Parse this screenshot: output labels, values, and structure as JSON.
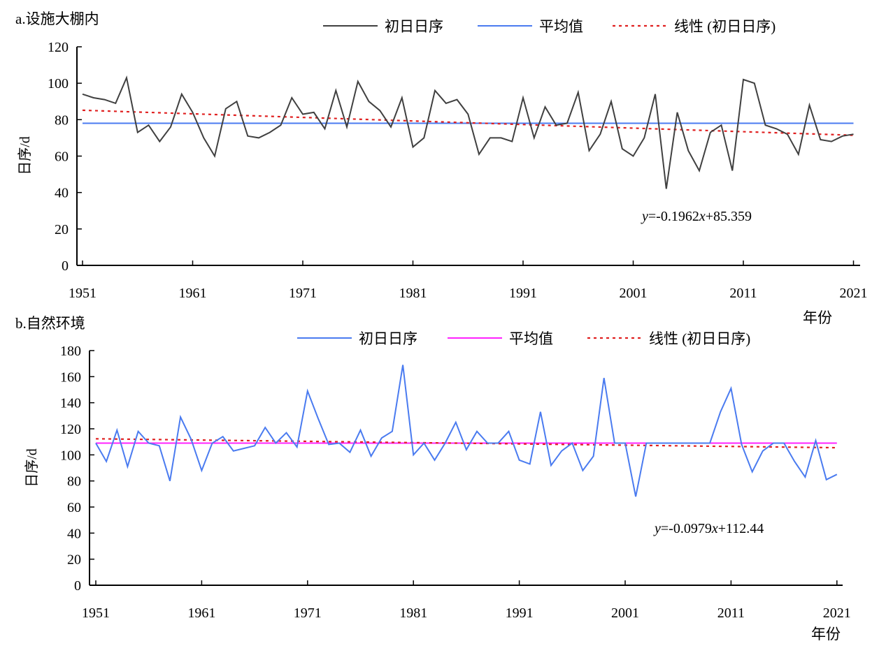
{
  "chart_data": [
    {
      "type": "line",
      "title": "a.设施大棚内",
      "xlabel": "年份",
      "ylabel": "日序/d",
      "ylim": [
        0,
        120
      ],
      "yticks": [
        "0",
        "20",
        "40",
        "60",
        "80",
        "100",
        "120"
      ],
      "xticks": [
        "1951",
        "1961",
        "1971",
        "1981",
        "1991",
        "2001",
        "2011",
        "2021"
      ],
      "x_start": 1951,
      "equation_y": "y",
      "equation_rest": "=-0.1962",
      "equation_x": "x",
      "equation_tail": "+85.359",
      "trend": {
        "slope": -0.1962,
        "intercept": 85.359
      },
      "mean": 78,
      "colors": {
        "series": "#404040",
        "mean": "#4a7bf0",
        "trend": "#e02020"
      },
      "legend": [
        "初日日序",
        "平均值",
        "线性 (初日日序)"
      ],
      "legend_position": "top",
      "values": [
        94,
        92,
        91,
        89,
        103,
        73,
        77,
        68,
        76,
        94,
        84,
        70,
        60,
        86,
        90,
        71,
        70,
        73,
        77,
        92,
        83,
        84,
        75,
        96,
        76,
        101,
        90,
        85,
        76,
        92,
        65,
        70,
        96,
        89,
        91,
        83,
        61,
        70,
        70,
        68,
        92,
        70,
        87,
        77,
        78,
        95,
        63,
        72,
        90,
        64,
        60,
        70,
        94,
        42,
        84,
        63,
        52,
        73,
        77,
        52,
        102,
        100,
        77,
        75,
        72,
        61,
        88,
        69,
        68,
        71,
        72
      ]
    },
    {
      "type": "line",
      "title": "b.自然环境",
      "xlabel": "年份",
      "ylabel": "日序/d",
      "ylim": [
        0,
        180
      ],
      "yticks": [
        "0",
        "20",
        "40",
        "60",
        "80",
        "100",
        "120",
        "140",
        "160",
        "180"
      ],
      "xticks": [
        "1951",
        "1961",
        "1971",
        "1981",
        "1991",
        "2001",
        "2011",
        "2021"
      ],
      "x_start": 1951,
      "equation_y": "y",
      "equation_rest": "=-0.0979",
      "equation_x": "x",
      "equation_tail": "+112.44",
      "trend": {
        "slope": -0.0979,
        "intercept": 112.44
      },
      "mean": 109,
      "colors": {
        "series": "#4a7bf0",
        "mean": "#ff22ff",
        "trend": "#e02020"
      },
      "legend": [
        "初日日序",
        "平均值",
        "线性 (初日日序)"
      ],
      "legend_position": "top",
      "values": [
        109,
        95,
        119,
        91,
        118,
        109,
        107,
        80,
        129,
        112,
        88,
        109,
        114,
        103,
        105,
        107,
        121,
        109,
        117,
        106,
        149,
        128,
        108,
        109,
        102,
        119,
        99,
        113,
        118,
        169,
        100,
        109,
        96,
        109,
        125,
        104,
        118,
        109,
        109,
        118,
        96,
        93,
        133,
        92,
        103,
        109,
        88,
        99,
        159,
        109,
        109,
        68,
        109,
        109,
        109,
        109,
        109,
        109,
        109,
        133,
        151,
        108,
        87,
        103,
        109,
        109,
        95,
        83,
        111,
        81,
        85
      ]
    }
  ]
}
